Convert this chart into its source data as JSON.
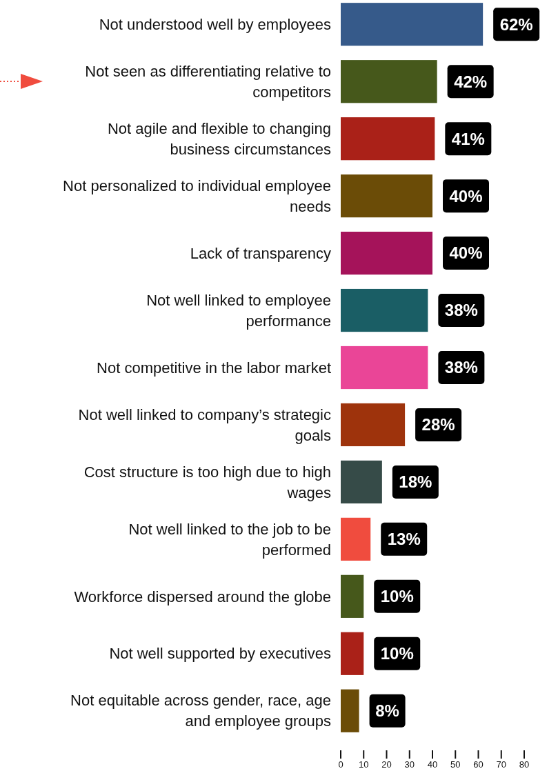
{
  "chart_data": {
    "type": "bar",
    "orientation": "horizontal",
    "categories": [
      "Not understood well by employees",
      "Not seen as differentiating relative to competitors",
      "Not agile and flexible to changing business circumstances",
      "Not personalized to individual employee needs",
      "Lack of transparency",
      "Not well linked to employee performance",
      "Not competitive in the labor market",
      "Not well linked to company’s strategic goals",
      "Cost structure is too high due to high wages",
      "Not well linked to the job to be performed",
      "Workforce dispersed around the globe",
      "Not well supported by executives",
      "Not equitable across gender, race, age and employee groups"
    ],
    "values": [
      62,
      42,
      41,
      40,
      40,
      38,
      38,
      28,
      18,
      13,
      10,
      10,
      8
    ],
    "value_labels": [
      "62%",
      "42%",
      "41%",
      "40%",
      "40%",
      "38%",
      "38%",
      "28%",
      "18%",
      "13%",
      "10%",
      "10%",
      "8%"
    ],
    "colors": [
      "#365a8a",
      "#46581b",
      "#aa2118",
      "#6b4c07",
      "#a5135a",
      "#1a5e65",
      "#ea4597",
      "#9e330c",
      "#364b48",
      "#f04c3e",
      "#46581b",
      "#aa2118",
      "#6b4c07"
    ],
    "xlim": [
      0,
      80
    ],
    "xticks": [
      0,
      10,
      20,
      30,
      40,
      50,
      60,
      70,
      80
    ]
  }
}
